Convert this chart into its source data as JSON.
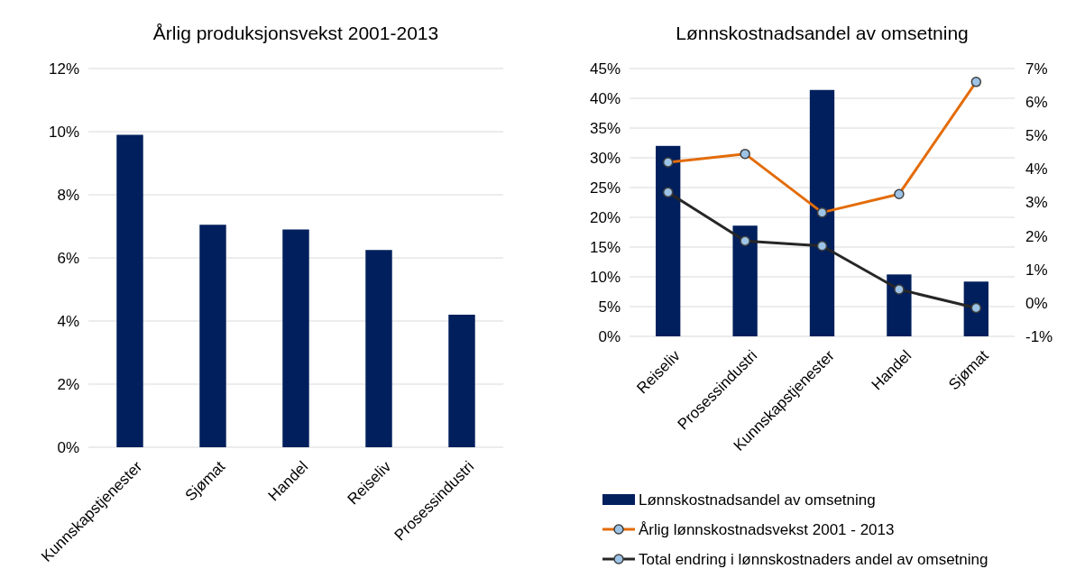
{
  "chart_data": [
    {
      "type": "bar",
      "title": "Årlig produksjonsvekst 2001-2013",
      "categories": [
        "Kunnskapstjenester",
        "Sjømat",
        "Handel",
        "Reiseliv",
        "Prosessindustri"
      ],
      "series": [
        {
          "color": "#001f5c",
          "values": [
            9.9,
            7.05,
            6.9,
            6.25,
            4.2
          ]
        }
      ],
      "ylim": [
        0,
        12
      ],
      "yticks": [
        {
          "value": 0,
          "label": "0%"
        },
        {
          "value": 2,
          "label": "2%"
        },
        {
          "value": 4,
          "label": "4%"
        },
        {
          "value": 6,
          "label": "6%"
        },
        {
          "value": 8,
          "label": "8%"
        },
        {
          "value": 10,
          "label": "10%"
        },
        {
          "value": 12,
          "label": "12%"
        }
      ],
      "grid": "y",
      "legend": false
    },
    {
      "type": "bar",
      "title": "Lønnskostnadsandel av omsetning",
      "categories": [
        "Reiseliv",
        "Prosessindustri",
        "Kunnskapstjenester",
        "Handel",
        "Sjømat"
      ],
      "series": [
        {
          "name": "Lønnskostnadsandel av omsetning",
          "color": "#001f5c",
          "values": [
            32.0,
            18.6,
            41.4,
            10.4,
            9.2
          ]
        },
        {
          "name": "Årlig lønnskostnadsvekst 2001 - 2013",
          "type": "line",
          "axis": "y2",
          "color": "#e36c09",
          "values": [
            4.2,
            4.45,
            2.7,
            3.25,
            6.6
          ]
        },
        {
          "name": "Total endring i lønnskostnaders andel av omsetning",
          "type": "line",
          "axis": "y2",
          "color": "#262626",
          "values": [
            3.3,
            1.85,
            1.7,
            0.4,
            -0.15
          ]
        }
      ],
      "ylim": [
        0,
        45
      ],
      "yticks": [
        {
          "value": 0,
          "label": "0%"
        },
        {
          "value": 5,
          "label": "5%"
        },
        {
          "value": 10,
          "label": "10%"
        },
        {
          "value": 15,
          "label": "15%"
        },
        {
          "value": 20,
          "label": "20%"
        },
        {
          "value": 25,
          "label": "25%"
        },
        {
          "value": 30,
          "label": "30%"
        },
        {
          "value": 35,
          "label": "35%"
        },
        {
          "value": 40,
          "label": "40%"
        },
        {
          "value": 45,
          "label": "45%"
        }
      ],
      "y2lim": [
        -1,
        7
      ],
      "y2ticks": [
        {
          "value": -1,
          "label": "-1%"
        },
        {
          "value": 0,
          "label": "0%"
        },
        {
          "value": 1,
          "label": "1%"
        },
        {
          "value": 2,
          "label": "2%"
        },
        {
          "value": 3,
          "label": "3%"
        },
        {
          "value": 4,
          "label": "4%"
        },
        {
          "value": 5,
          "label": "5%"
        },
        {
          "value": 6,
          "label": "6%"
        },
        {
          "value": 7,
          "label": "7%"
        }
      ],
      "grid": "y",
      "legend": "bottom",
      "marker": "circle"
    }
  ]
}
